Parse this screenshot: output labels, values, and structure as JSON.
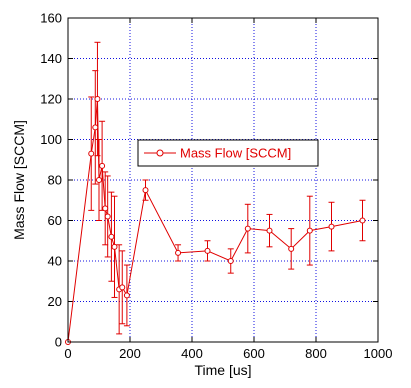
{
  "chart_data": {
    "type": "line",
    "xlabel": "Time [us]",
    "ylabel": "Mass Flow [SCCM]",
    "xlim": [
      0,
      1000
    ],
    "ylim": [
      0,
      160
    ],
    "xticks": [
      0,
      200,
      400,
      600,
      800,
      1000
    ],
    "yticks": [
      0,
      20,
      40,
      60,
      80,
      100,
      120,
      140,
      160
    ],
    "grid": true,
    "legend_position": "center",
    "series": [
      {
        "name": "Mass Flow [SCCM]",
        "color": "#e00000",
        "marker": "open-circle",
        "x": [
          0,
          75,
          88,
          95,
          100,
          110,
          120,
          128,
          140,
          150,
          165,
          175,
          190,
          250,
          355,
          450,
          525,
          580,
          650,
          720,
          780,
          850,
          950
        ],
        "y": [
          0,
          93,
          106,
          120,
          80,
          87,
          66,
          62,
          52,
          47,
          26,
          27,
          23,
          75,
          44,
          45,
          40,
          56,
          55,
          46,
          55,
          57,
          60
        ],
        "err": [
          0,
          28,
          28,
          28,
          20,
          22,
          18,
          20,
          22,
          25,
          22,
          18,
          15,
          5,
          4,
          5,
          6,
          12,
          8,
          10,
          17,
          12,
          10
        ]
      }
    ]
  }
}
